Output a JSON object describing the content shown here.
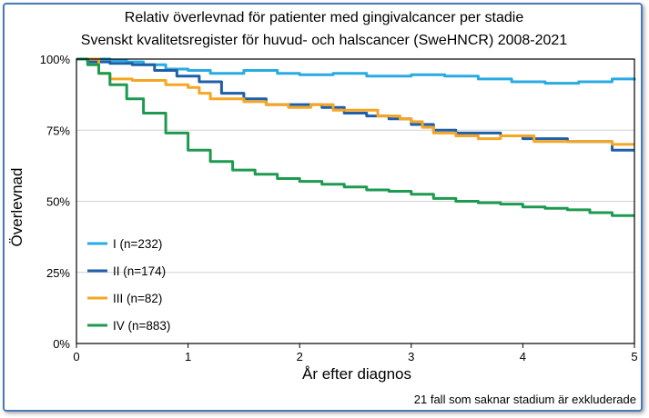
{
  "chart_data": {
    "type": "line",
    "title": "Relativ överlevnad för patienter med gingivalcancer per stadie",
    "subtitle": "Svenskt kvalitetsregister för huvud- och halscancer (SweHNCR) 2008-2021",
    "xlabel": "År efter diagnos",
    "ylabel": "Överlevnad",
    "xlim": [
      0,
      5
    ],
    "ylim": [
      0,
      100
    ],
    "x_ticks": [
      "0",
      "1",
      "2",
      "3",
      "4",
      "5"
    ],
    "y_ticks": [
      "0%",
      "25%",
      "50%",
      "75%",
      "100%"
    ],
    "footnote": "21 fall som saknar stadium är exkluderade",
    "grid": "horizontal",
    "legend_position": "bottom-left",
    "series": [
      {
        "name": "I (n=232)",
        "color": "#29abe2",
        "points": [
          [
            0,
            100
          ],
          [
            0.3,
            99.5
          ],
          [
            0.45,
            99
          ],
          [
            0.6,
            98
          ],
          [
            0.8,
            96.5
          ],
          [
            1.0,
            96
          ],
          [
            1.2,
            95
          ],
          [
            1.5,
            96
          ],
          [
            1.8,
            95
          ],
          [
            2.0,
            94.5
          ],
          [
            2.3,
            95
          ],
          [
            2.6,
            94
          ],
          [
            3.0,
            94.5
          ],
          [
            3.3,
            94
          ],
          [
            3.6,
            93
          ],
          [
            3.9,
            92
          ],
          [
            4.2,
            91.5
          ],
          [
            4.5,
            92
          ],
          [
            4.8,
            93
          ],
          [
            5.0,
            92.5
          ]
        ]
      },
      {
        "name": "II (n=174)",
        "color": "#1f5fa8",
        "points": [
          [
            0,
            100
          ],
          [
            0.1,
            99
          ],
          [
            0.3,
            98.5
          ],
          [
            0.5,
            98
          ],
          [
            0.7,
            96
          ],
          [
            0.9,
            94
          ],
          [
            1.1,
            92
          ],
          [
            1.3,
            88
          ],
          [
            1.5,
            86
          ],
          [
            1.7,
            84
          ],
          [
            2.0,
            84
          ],
          [
            2.2,
            83
          ],
          [
            2.4,
            81
          ],
          [
            2.6,
            80
          ],
          [
            2.8,
            79
          ],
          [
            3.0,
            77
          ],
          [
            3.2,
            75
          ],
          [
            3.4,
            74
          ],
          [
            3.6,
            74
          ],
          [
            3.8,
            73
          ],
          [
            4.0,
            72
          ],
          [
            4.2,
            72
          ],
          [
            4.4,
            71
          ],
          [
            4.6,
            71
          ],
          [
            4.8,
            68
          ],
          [
            5.0,
            68
          ]
        ]
      },
      {
        "name": "III (n=82)",
        "color": "#f5a623",
        "points": [
          [
            0,
            100
          ],
          [
            0.2,
            95
          ],
          [
            0.3,
            93
          ],
          [
            0.5,
            92.5
          ],
          [
            0.6,
            92.5
          ],
          [
            0.8,
            91
          ],
          [
            1.0,
            90
          ],
          [
            1.1,
            88
          ],
          [
            1.2,
            86
          ],
          [
            1.5,
            85
          ],
          [
            1.7,
            84
          ],
          [
            1.9,
            83
          ],
          [
            2.1,
            84
          ],
          [
            2.3,
            82
          ],
          [
            2.5,
            82
          ],
          [
            2.7,
            80
          ],
          [
            2.9,
            79
          ],
          [
            3.0,
            78
          ],
          [
            3.1,
            76
          ],
          [
            3.2,
            74
          ],
          [
            3.4,
            73
          ],
          [
            3.6,
            72
          ],
          [
            3.8,
            73
          ],
          [
            4.0,
            73
          ],
          [
            4.1,
            71
          ],
          [
            4.3,
            71
          ],
          [
            4.5,
            71
          ],
          [
            4.8,
            70
          ],
          [
            5.0,
            70
          ]
        ]
      },
      {
        "name": "IV (n=883)",
        "color": "#1e9a50",
        "points": [
          [
            0,
            100
          ],
          [
            0.1,
            98
          ],
          [
            0.2,
            95
          ],
          [
            0.3,
            91
          ],
          [
            0.45,
            86
          ],
          [
            0.6,
            81
          ],
          [
            0.8,
            74
          ],
          [
            1.0,
            68
          ],
          [
            1.2,
            64
          ],
          [
            1.4,
            61
          ],
          [
            1.6,
            59.5
          ],
          [
            1.8,
            58
          ],
          [
            2.0,
            57
          ],
          [
            2.2,
            56
          ],
          [
            2.4,
            55
          ],
          [
            2.6,
            54
          ],
          [
            2.8,
            53.5
          ],
          [
            3.0,
            52.5
          ],
          [
            3.2,
            51
          ],
          [
            3.4,
            50
          ],
          [
            3.6,
            49.5
          ],
          [
            3.8,
            49
          ],
          [
            4.0,
            48
          ],
          [
            4.2,
            47.5
          ],
          [
            4.4,
            47
          ],
          [
            4.6,
            46
          ],
          [
            4.8,
            45
          ],
          [
            5.0,
            45
          ]
        ]
      }
    ]
  }
}
